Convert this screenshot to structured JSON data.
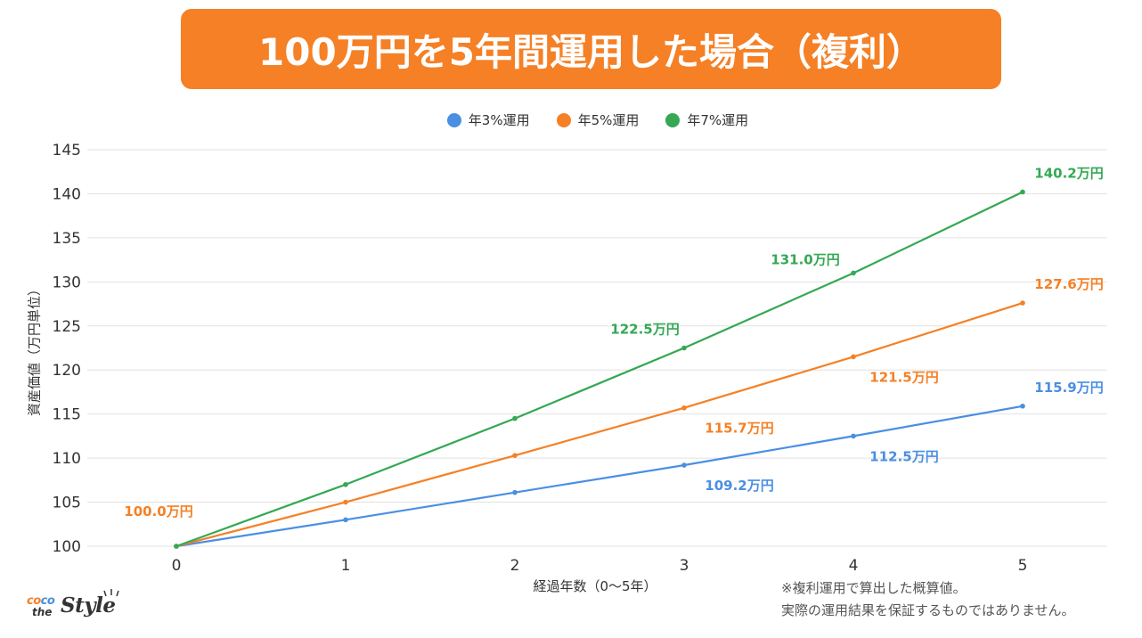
{
  "title": "100万円を5年間運用した場合（複利）",
  "colors": {
    "banner": "#f58025",
    "series_3": "#4a8fe2",
    "series_5": "#f58025",
    "series_7": "#34a853",
    "grid": "#e2e2e2",
    "axis_text": "#333333"
  },
  "chart_data": {
    "type": "line",
    "title": "100万円を5年間運用した場合（複利）",
    "xlabel": "経過年数（0〜5年）",
    "ylabel": "資産価値（万円単位）",
    "x": [
      0,
      1,
      2,
      3,
      4,
      5
    ],
    "x_tick_labels": [
      "0",
      "1",
      "2",
      "3",
      "4",
      "5"
    ],
    "ylim": [
      100,
      145
    ],
    "y_ticks": [
      100,
      105,
      110,
      115,
      120,
      125,
      130,
      135,
      140,
      145
    ],
    "y_tick_labels": [
      "100",
      "105",
      "110",
      "115",
      "120",
      "125",
      "130",
      "135",
      "140",
      "145"
    ],
    "grid": true,
    "legend_position": "top-center",
    "series": [
      {
        "name": "年3%運用",
        "color": "#4a8fe2",
        "values": [
          100.0,
          103.0,
          106.1,
          109.2,
          112.5,
          115.9
        ],
        "data_labels": [
          {
            "index": 3,
            "text": "109.2万円",
            "position": "below"
          },
          {
            "index": 4,
            "text": "112.5万円",
            "position": "below"
          },
          {
            "index": 5,
            "text": "115.9万円",
            "position": "above"
          }
        ]
      },
      {
        "name": "年5%運用",
        "color": "#f58025",
        "values": [
          100.0,
          105.0,
          110.3,
          115.7,
          121.5,
          127.6
        ],
        "data_labels": [
          {
            "index": 0,
            "text": "100.0万円",
            "position": "above-left"
          },
          {
            "index": 3,
            "text": "115.7万円",
            "position": "below"
          },
          {
            "index": 4,
            "text": "121.5万円",
            "position": "below"
          },
          {
            "index": 5,
            "text": "127.6万円",
            "position": "above"
          }
        ]
      },
      {
        "name": "年7%運用",
        "color": "#34a853",
        "values": [
          100.0,
          107.0,
          114.5,
          122.5,
          131.0,
          140.2
        ],
        "data_labels": [
          {
            "index": 3,
            "text": "122.5万円",
            "position": "above-left"
          },
          {
            "index": 4,
            "text": "131.0万円",
            "position": "above-left"
          },
          {
            "index": 5,
            "text": "140.2万円",
            "position": "above"
          }
        ]
      }
    ]
  },
  "footnote": {
    "line1": "※複利運用で算出した概算値。",
    "line2": "実際の運用結果を保証するものではありません。"
  },
  "logo": {
    "coco_part1": "co",
    "coco_part2": "co",
    "the": "the",
    "style": "Style"
  }
}
